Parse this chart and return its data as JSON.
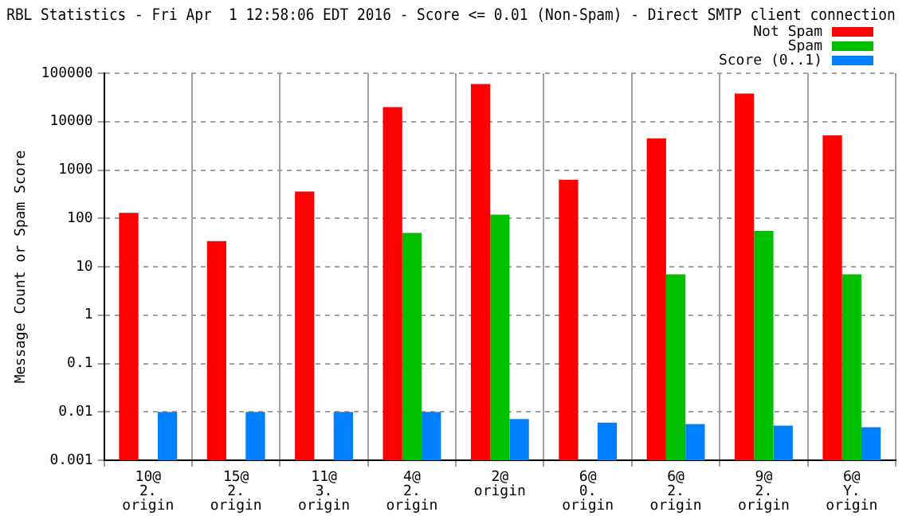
{
  "chart_data": {
    "type": "bar",
    "title": "RBL Statistics - Fri Apr  1 12:58:06 EDT 2016 - Score <= 0.01 (Non-Spam) - Direct SMTP client connection",
    "ylabel": "Message Count or Spam Score",
    "categories": [
      "10@ 2. origin",
      "15@ 2. origin",
      "11@ 3. origin",
      "4@ 2. origin",
      "2@ origin",
      "6@ 0. origin",
      "6@ 2. origin",
      "9@ 2. origin",
      "6@ Y. origin"
    ],
    "series": [
      {
        "name": "Not Spam",
        "color": "#ff0000",
        "values": [
          130,
          34,
          360,
          20000,
          60000,
          630,
          4500,
          38000,
          5200
        ]
      },
      {
        "name": "Spam",
        "color": "#00c000",
        "values": [
          null,
          null,
          null,
          50,
          120,
          null,
          7,
          55,
          7
        ]
      },
      {
        "name": "Score (0..1)",
        "color": "#0080ff",
        "values": [
          0.01,
          0.01,
          0.01,
          0.01,
          0.0071,
          0.006,
          0.0056,
          0.0052,
          0.0048
        ]
      }
    ],
    "log": "y",
    "ylim": [
      0.001,
      100000
    ],
    "yticks": [
      0.001,
      0.01,
      0.1,
      1,
      10,
      100,
      1000,
      10000,
      100000
    ],
    "grid": true,
    "legend": "top right"
  }
}
